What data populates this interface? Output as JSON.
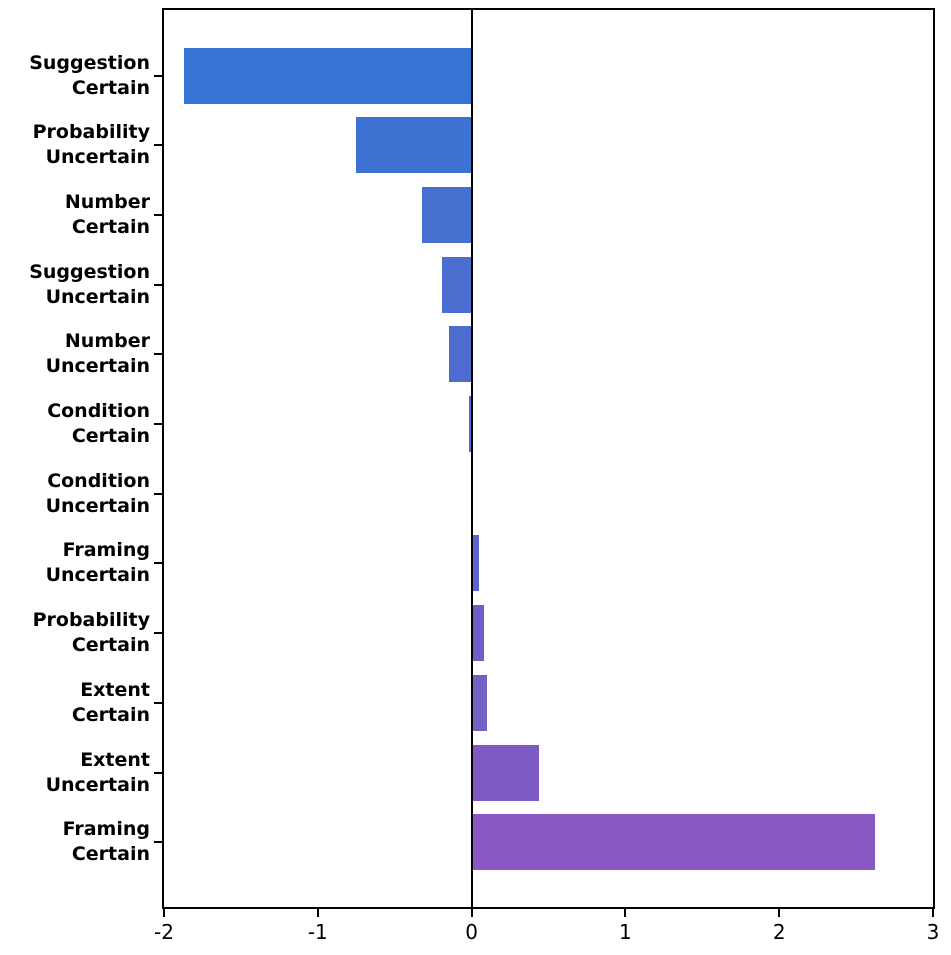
{
  "chart_data": {
    "type": "bar",
    "orientation": "horizontal",
    "title": "",
    "xlabel": "",
    "ylabel": "",
    "xlim": [
      -2,
      3
    ],
    "grid": false,
    "legend": "none",
    "x_ticks": [
      "-2",
      "-1",
      "0",
      "1",
      "2",
      "3"
    ],
    "x_tick_values": [
      -2,
      -1,
      0,
      1,
      2,
      3
    ],
    "categories": [
      "Suggestion Certain",
      "Probability Uncertain",
      "Number Certain",
      "Suggestion Uncertain",
      "Number Uncertain",
      "Condition Certain",
      "Condition Uncertain",
      "Framing Uncertain",
      "Probability Certain",
      "Extent Certain",
      "Extent Uncertain",
      "Framing Certain"
    ],
    "category_lines": [
      [
        "Suggestion",
        "Certain"
      ],
      [
        "Probability",
        "Uncertain"
      ],
      [
        "Number",
        "Certain"
      ],
      [
        "Suggestion",
        "Uncertain"
      ],
      [
        "Number",
        "Uncertain"
      ],
      [
        "Condition",
        "Certain"
      ],
      [
        "Condition",
        "Uncertain"
      ],
      [
        "Framing",
        "Uncertain"
      ],
      [
        "Probability",
        "Certain"
      ],
      [
        "Extent",
        "Certain"
      ],
      [
        "Extent",
        "Uncertain"
      ],
      [
        "Framing",
        "Certain"
      ]
    ],
    "values": [
      -1.87,
      -0.75,
      -0.32,
      -0.19,
      -0.15,
      -0.02,
      0.0,
      0.05,
      0.08,
      0.1,
      0.44,
      2.62
    ],
    "bar_colors": [
      "#3574d4",
      "#3e72d2",
      "#4470d0",
      "#4c6ed0",
      "#4e6ccf",
      "#5569cd",
      "#5a66cb",
      "#5e64c8",
      "#6c60c8",
      "#7560c6",
      "#7e5ac5",
      "#8a58c4"
    ],
    "zero_line_color": "#000000",
    "axis_color": "#000000",
    "background_color": "#ffffff"
  }
}
